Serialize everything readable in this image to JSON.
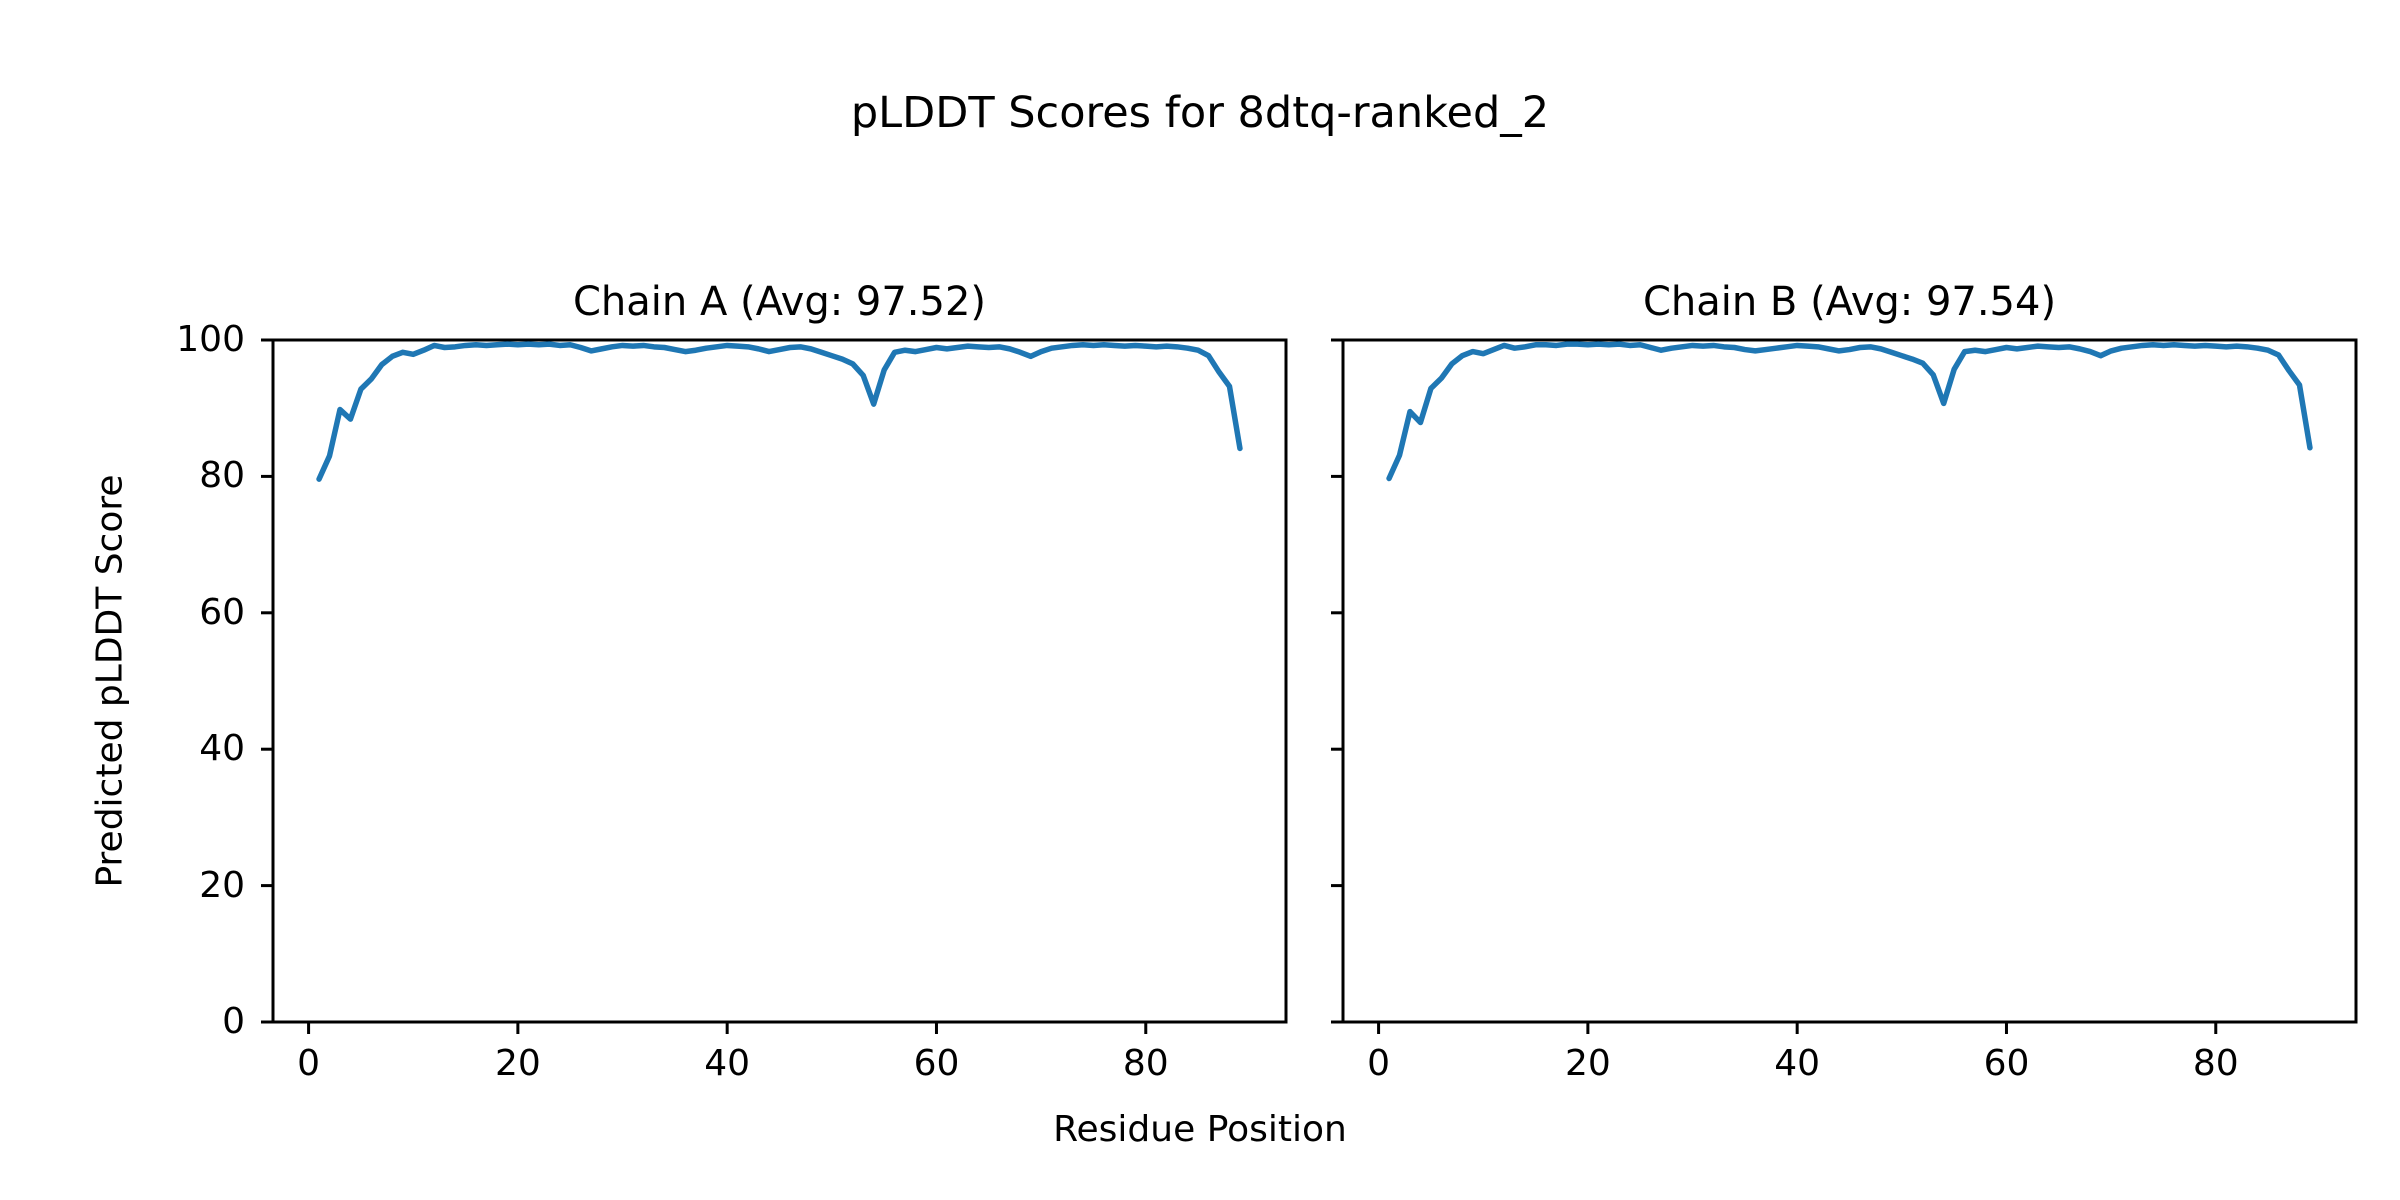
{
  "figure": {
    "suptitle": "pLDDT Scores for 8dtq-ranked_2",
    "xlabel": "Residue Position",
    "ylabel": "Predicted pLDDT Score"
  },
  "chart_data": [
    {
      "type": "line",
      "title": "Chain A (Avg: 97.52)",
      "series_name": "Chain A",
      "average_plddt": 97.52,
      "line_color": "#1f77b4",
      "xlim": [
        -3.4,
        93.4
      ],
      "ylim": [
        0,
        100
      ],
      "xticks": [
        0,
        20,
        40,
        60,
        80
      ],
      "yticks": [
        0,
        20,
        40,
        60,
        80,
        100
      ],
      "show_ytick_labels": true,
      "x": [
        1,
        2,
        3,
        4,
        5,
        6,
        7,
        8,
        9,
        10,
        11,
        12,
        13,
        14,
        15,
        16,
        17,
        18,
        19,
        20,
        21,
        22,
        23,
        24,
        25,
        26,
        27,
        28,
        29,
        30,
        31,
        32,
        33,
        34,
        35,
        36,
        37,
        38,
        39,
        40,
        41,
        42,
        43,
        44,
        45,
        46,
        47,
        48,
        49,
        50,
        51,
        52,
        53,
        54,
        55,
        56,
        57,
        58,
        59,
        60,
        61,
        62,
        63,
        64,
        65,
        66,
        67,
        68,
        69,
        70,
        71,
        72,
        73,
        74,
        75,
        76,
        77,
        78,
        79,
        80,
        81,
        82,
        83,
        84,
        85,
        86,
        87,
        88,
        89
      ],
      "values": [
        79.6,
        83.0,
        89.8,
        88.4,
        92.8,
        94.3,
        96.4,
        97.6,
        98.2,
        97.9,
        98.5,
        99.2,
        98.9,
        99.0,
        99.2,
        99.3,
        99.2,
        99.3,
        99.4,
        99.3,
        99.4,
        99.3,
        99.4,
        99.2,
        99.3,
        98.9,
        98.4,
        98.7,
        99.0,
        99.2,
        99.1,
        99.2,
        99.0,
        98.9,
        98.6,
        98.3,
        98.5,
        98.8,
        99.0,
        99.2,
        99.1,
        99.0,
        98.7,
        98.3,
        98.6,
        98.9,
        99.0,
        98.7,
        98.2,
        97.7,
        97.2,
        96.5,
        94.8,
        90.6,
        95.6,
        98.2,
        98.5,
        98.3,
        98.6,
        98.9,
        98.7,
        98.9,
        99.1,
        99.0,
        98.9,
        99.0,
        98.7,
        98.2,
        97.6,
        98.3,
        98.8,
        99.0,
        99.2,
        99.3,
        99.2,
        99.3,
        99.2,
        99.1,
        99.2,
        99.1,
        99.0,
        99.1,
        99.0,
        98.8,
        98.5,
        97.7,
        95.3,
        93.2,
        84.1
      ]
    },
    {
      "type": "line",
      "title": "Chain B (Avg: 97.54)",
      "series_name": "Chain B",
      "average_plddt": 97.54,
      "line_color": "#1f77b4",
      "xlim": [
        -3.4,
        93.4
      ],
      "ylim": [
        0,
        100
      ],
      "xticks": [
        0,
        20,
        40,
        60,
        80
      ],
      "yticks": [
        0,
        20,
        40,
        60,
        80,
        100
      ],
      "show_ytick_labels": false,
      "x": [
        1,
        2,
        3,
        4,
        5,
        6,
        7,
        8,
        9,
        10,
        11,
        12,
        13,
        14,
        15,
        16,
        17,
        18,
        19,
        20,
        21,
        22,
        23,
        24,
        25,
        26,
        27,
        28,
        29,
        30,
        31,
        32,
        33,
        34,
        35,
        36,
        37,
        38,
        39,
        40,
        41,
        42,
        43,
        44,
        45,
        46,
        47,
        48,
        49,
        50,
        51,
        52,
        53,
        54,
        55,
        56,
        57,
        58,
        59,
        60,
        61,
        62,
        63,
        64,
        65,
        66,
        67,
        68,
        69,
        70,
        71,
        72,
        73,
        74,
        75,
        76,
        77,
        78,
        79,
        80,
        81,
        82,
        83,
        84,
        85,
        86,
        87,
        88,
        89
      ],
      "values": [
        79.7,
        83.1,
        89.5,
        87.9,
        92.9,
        94.4,
        96.5,
        97.7,
        98.3,
        98.0,
        98.6,
        99.2,
        98.8,
        99.0,
        99.3,
        99.3,
        99.2,
        99.4,
        99.4,
        99.3,
        99.4,
        99.3,
        99.4,
        99.2,
        99.3,
        98.9,
        98.5,
        98.8,
        99.0,
        99.2,
        99.1,
        99.2,
        99.0,
        98.9,
        98.6,
        98.4,
        98.6,
        98.8,
        99.0,
        99.2,
        99.1,
        99.0,
        98.7,
        98.4,
        98.6,
        98.9,
        99.0,
        98.7,
        98.2,
        97.7,
        97.2,
        96.6,
        94.9,
        90.7,
        95.7,
        98.3,
        98.5,
        98.3,
        98.6,
        98.9,
        98.7,
        98.9,
        99.1,
        99.0,
        98.9,
        99.0,
        98.7,
        98.3,
        97.7,
        98.4,
        98.8,
        99.0,
        99.2,
        99.3,
        99.2,
        99.3,
        99.2,
        99.1,
        99.2,
        99.1,
        99.0,
        99.1,
        99.0,
        98.8,
        98.5,
        97.8,
        95.5,
        93.4,
        84.2
      ]
    }
  ]
}
